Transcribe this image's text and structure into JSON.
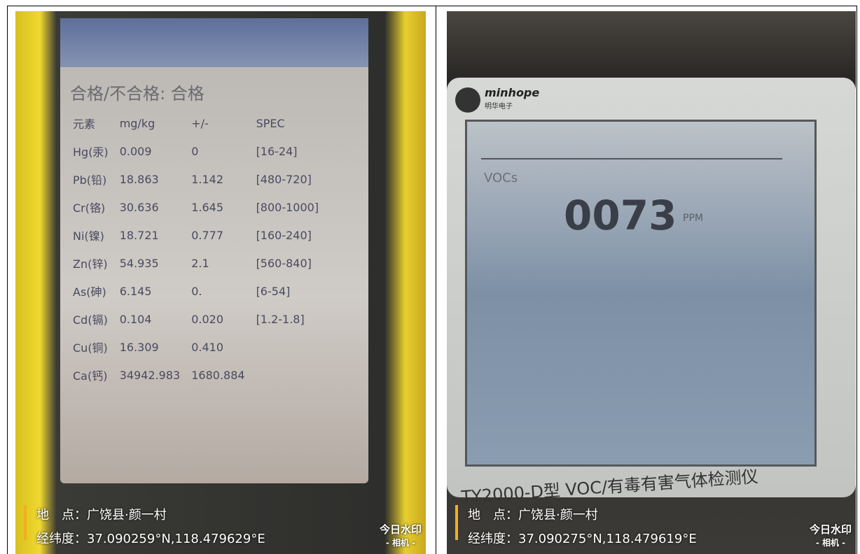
{
  "left": {
    "status": "合格/不合格: 合格",
    "table": {
      "header": [
        "元素",
        "mg/kg",
        "+/-",
        "SPEC"
      ],
      "rows": [
        [
          "Hg(汞)",
          "0.009",
          "0",
          "[16-24]"
        ],
        [
          "Pb(铅)",
          "18.863",
          "1.142",
          "[480-720]"
        ],
        [
          "Cr(铬)",
          "30.636",
          "1.645",
          "[800-1000]"
        ],
        [
          "Ni(镍)",
          "18.721",
          "0.777",
          "[160-240]"
        ],
        [
          "Zn(锌)",
          "54.935",
          "2.1",
          "[560-840]"
        ],
        [
          "As(砷)",
          "6.145",
          "0.",
          "[6-54]"
        ],
        [
          "Cd(镉)",
          "0.104",
          "0.020",
          "[1.2-1.8]"
        ],
        [
          "Cu(铜)",
          "16.309",
          "0.410"
        ],
        [
          "Ca(钙)",
          "34942.983",
          "1680.884"
        ]
      ]
    },
    "watermark": {
      "place": "地　点：广饶县·颜一村",
      "coords": "经纬度：37.090259°N,118.479629°E",
      "brand": "今日水印",
      "sub": "- 相机 -"
    }
  },
  "right": {
    "logo": "minhope",
    "logo_sub": "明华电子",
    "gas": "VOCs",
    "reading": "0073",
    "unit": "PPM",
    "model": "TY2000-D型 VOC/有毒有害气体检测仪",
    "watermark": {
      "place": "地　点：广饶县·颜一村",
      "coords": "经纬度：37.090275°N,118.479619°E",
      "brand": "今日水印",
      "sub": "- 相机 -"
    }
  }
}
